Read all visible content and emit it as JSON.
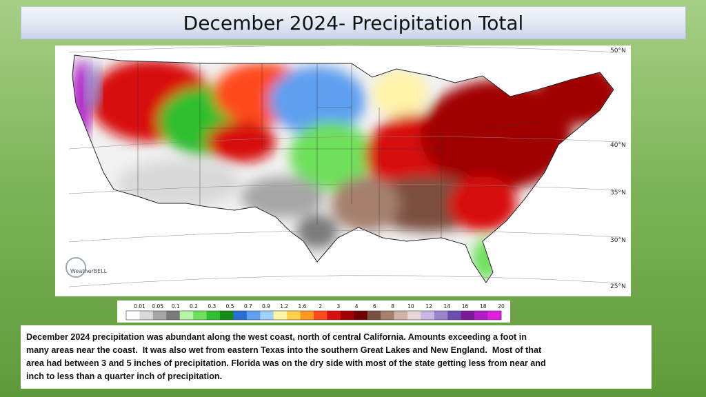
{
  "header": {
    "title": "December 2024- Precipitation Total"
  },
  "map": {
    "logo": "WeatherBELL",
    "lat_labels": [
      "50°N",
      "40°N",
      "35°N",
      "30°N",
      "25°N"
    ]
  },
  "legend": {
    "labels": [
      "0.01",
      "0.05",
      "0.1",
      "0.2",
      "0.3",
      "0.5",
      "0.7",
      "0.9",
      "1.2",
      "1.6",
      "2",
      "3",
      "4",
      "6",
      "8",
      "10",
      "12",
      "14",
      "16",
      "18",
      "20"
    ],
    "colors": [
      "#ffffff",
      "#d9d9d9",
      "#a6a6a6",
      "#7a7a7a",
      "#b6f5a8",
      "#6ee05c",
      "#2fbf2f",
      "#158c15",
      "#2a6fd6",
      "#5f9ff0",
      "#9fd0ff",
      "#fff3a8",
      "#ffd24a",
      "#ff9a1f",
      "#ff4a1a",
      "#d81010",
      "#a00000",
      "#6e0000",
      "#7a5040",
      "#a5806e",
      "#cfb3a6",
      "#e8d6d6",
      "#c9b8e3",
      "#9a84cc",
      "#6a4fae",
      "#7d1a9a",
      "#b01ec8",
      "#e020e0"
    ]
  },
  "caption": {
    "lines": [
      "December 2024 precipitation was abundant along the west coast, north of central California. Amounts exceeding a foot in",
      "many areas near the coast.  It was also wet from eastern Texas into the southern Great Lakes and New England.  Most of that",
      "area had between 3 and 5 inches of precipitation. Florida was on the dry side with most of the state getting less from near and",
      "inch to less than a quarter inch of precipitation."
    ]
  }
}
